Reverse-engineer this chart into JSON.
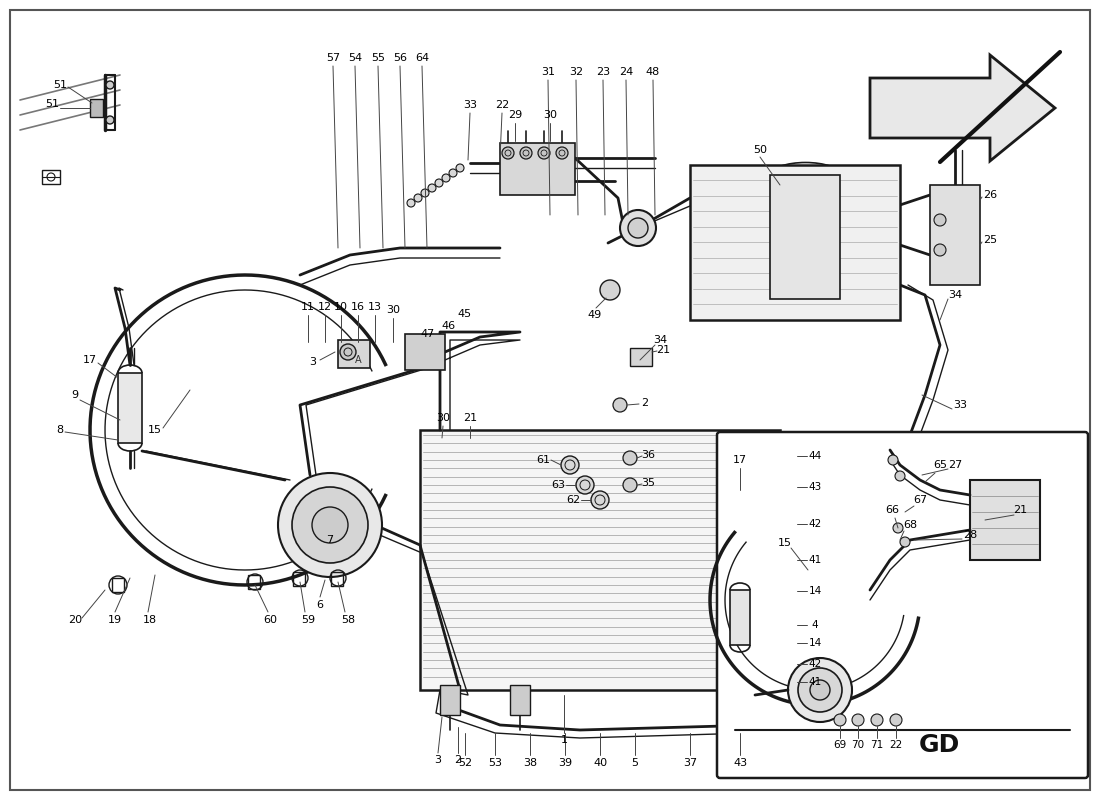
{
  "bg_color": "#ffffff",
  "line_color": "#1a1a1a",
  "figsize": [
    11.0,
    8.0
  ],
  "dpi": 100,
  "border_color": "#333333"
}
